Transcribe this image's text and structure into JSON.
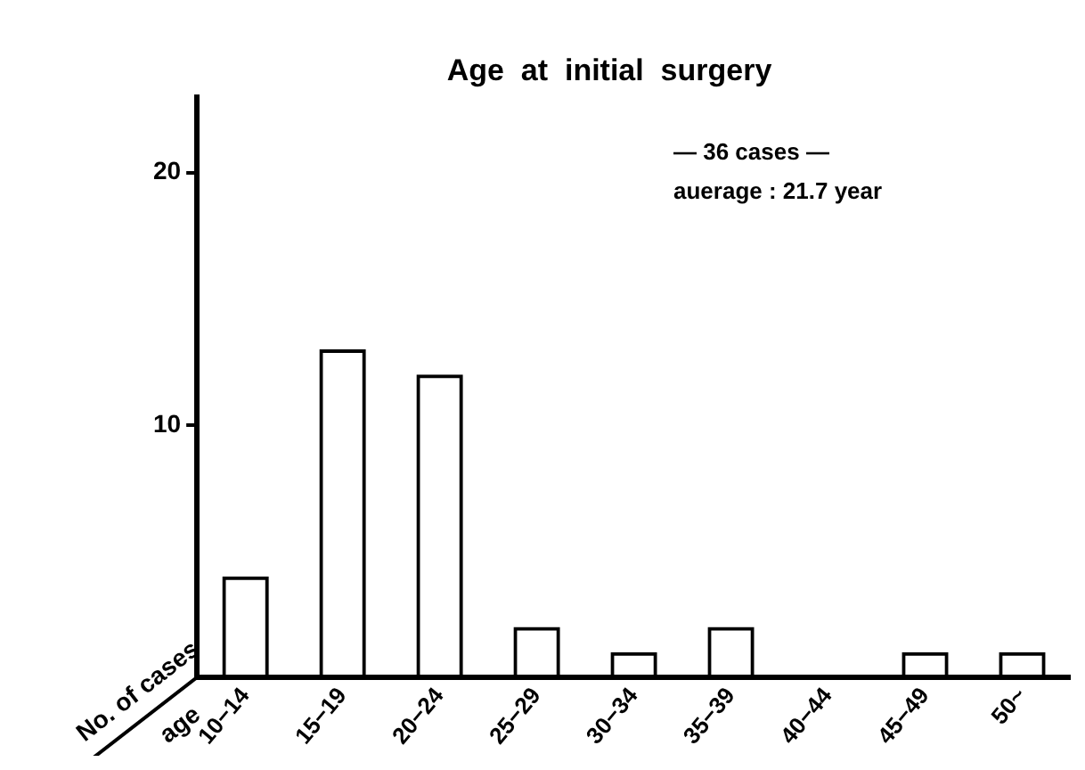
{
  "chart_data": {
    "type": "bar",
    "title": "Age  at  initial  surgery",
    "xlabel": "age",
    "ylabel": "No. of cases",
    "categories": [
      "10−14",
      "15−19",
      "20−24",
      "25−29",
      "30−34",
      "35−39",
      "40−44",
      "45−49",
      "50~"
    ],
    "values": [
      4,
      13,
      12,
      2,
      1,
      2,
      0,
      1,
      1
    ],
    "color": "#000000",
    "ylim": [
      0,
      23
    ],
    "yticks": [
      10,
      20
    ],
    "grid": false,
    "legend": false,
    "annotations": [
      "— 36 cases —",
      "auerage : 21.7 year"
    ]
  }
}
